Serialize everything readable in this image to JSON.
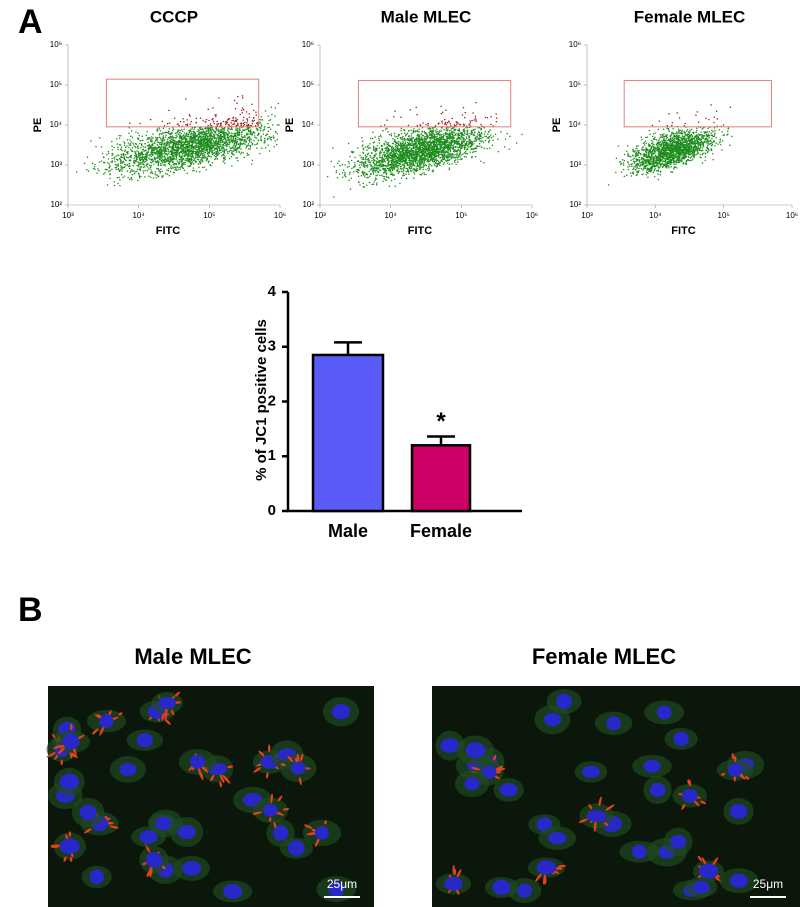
{
  "panel_labels": [
    "A",
    "B"
  ],
  "chart_data": [
    {
      "type": "scatter",
      "title": "CCCP",
      "x_label": "FITC",
      "y_label": "PE",
      "log_scale": true,
      "xlim": [
        1000,
        1000000
      ],
      "ylim": [
        100,
        1000000
      ],
      "xticks": [
        {
          "value": 1000,
          "label": "10³"
        },
        {
          "value": 10000,
          "label": "10⁴"
        },
        {
          "value": 100000,
          "label": "10⁵"
        },
        {
          "value": 1000000,
          "label": "10⁶"
        }
      ],
      "yticks": [
        {
          "value": 100,
          "label": "10²"
        },
        {
          "value": 1000,
          "label": "10³"
        },
        {
          "value": 10000,
          "label": "10⁴"
        },
        {
          "value": 100000,
          "label": "10⁵"
        },
        {
          "value": 1000000,
          "label": "10⁶"
        }
      ],
      "gate": {
        "x": [
          3500,
          500000
        ],
        "y": [
          9000,
          140000
        ]
      },
      "colors": [
        "#1e8c1e",
        "#a01c1c"
      ],
      "gate_color": "#e08080"
    },
    {
      "type": "scatter",
      "title": "Male MLEC",
      "x_label": "FITC",
      "y_label": "PE",
      "log_scale": true,
      "xlim": [
        1000,
        1000000
      ],
      "ylim": [
        100,
        1000000
      ],
      "xticks": [
        {
          "value": 1000,
          "label": "10³"
        },
        {
          "value": 10000,
          "label": "10⁴"
        },
        {
          "value": 100000,
          "label": "10⁵"
        },
        {
          "value": 1000000,
          "label": "10⁶"
        }
      ],
      "yticks": [
        {
          "value": 100,
          "label": "10²"
        },
        {
          "value": 1000,
          "label": "10³"
        },
        {
          "value": 10000,
          "label": "10⁴"
        },
        {
          "value": 100000,
          "label": "10⁵"
        },
        {
          "value": 1000000,
          "label": "10⁶"
        }
      ],
      "gate": {
        "x": [
          3500,
          500000
        ],
        "y": [
          9000,
          130000
        ]
      },
      "colors": [
        "#1e8c1e",
        "#a01c1c"
      ],
      "gate_color": "#e08080"
    },
    {
      "type": "scatter",
      "title": "Female MLEC",
      "x_label": "FITC",
      "y_label": "PE",
      "log_scale": true,
      "xlim": [
        1000,
        1000000
      ],
      "ylim": [
        100,
        1000000
      ],
      "xticks": [
        {
          "value": 1000,
          "label": "10³"
        },
        {
          "value": 10000,
          "label": "10⁴"
        },
        {
          "value": 100000,
          "label": "10⁵"
        },
        {
          "value": 1000000,
          "label": "10⁶"
        }
      ],
      "yticks": [
        {
          "value": 100,
          "label": "10²"
        },
        {
          "value": 1000,
          "label": "10³"
        },
        {
          "value": 10000,
          "label": "10⁴"
        },
        {
          "value": 100000,
          "label": "10⁵"
        },
        {
          "value": 1000000,
          "label": "10⁶"
        }
      ],
      "gate": {
        "x": [
          3500,
          500000
        ],
        "y": [
          9000,
          130000
        ]
      },
      "colors": [
        "#1e8c1e",
        "#a01c1c"
      ],
      "gate_color": "#e08080"
    },
    {
      "type": "bar",
      "y_label": "% of JC1 positive cells",
      "categories": [
        "Male",
        "Female"
      ],
      "values": [
        2.85,
        1.2
      ],
      "errors": [
        0.23,
        0.16
      ],
      "colors": [
        "#5b5bf7",
        "#cc0066"
      ],
      "ylim": [
        0,
        4
      ],
      "yticks": [
        0,
        1,
        2,
        3,
        4
      ],
      "annotation": "*"
    }
  ],
  "images": [
    {
      "title": "Male MLEC",
      "scale_bar": "25μm"
    },
    {
      "title": "Female MLEC",
      "scale_bar": "25μm"
    }
  ]
}
